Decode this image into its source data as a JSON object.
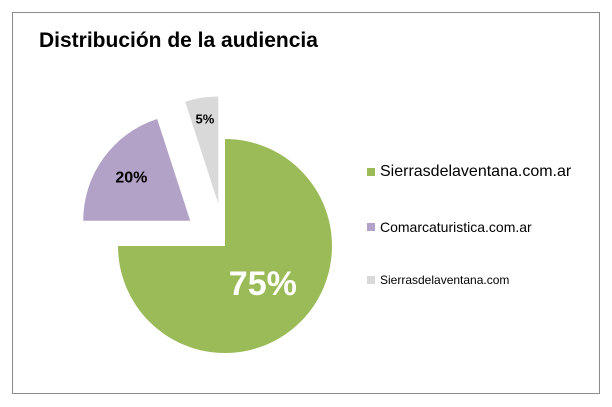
{
  "chart_data": {
    "type": "pie",
    "title": "Distribución de la audiencia",
    "slices": [
      {
        "label": "Sierrasdelaventana.com.ar",
        "value": 75,
        "display": "75%",
        "color": "#9bbb59"
      },
      {
        "label": "Comarcaturistica.com.ar",
        "value": 20,
        "display": "20%",
        "color": "#b3a2c7"
      },
      {
        "label": "Sierrasdelaventana.com",
        "value": 5,
        "display": "5%",
        "color": "#d9d9d9"
      }
    ],
    "legend_position": "right"
  }
}
